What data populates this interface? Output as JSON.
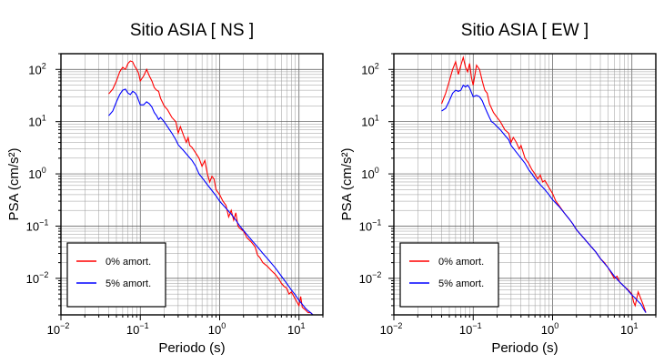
{
  "chart_data": [
    {
      "type": "line",
      "title": "Sitio ASIA [ NS ]",
      "xlabel": "Periodo (s)",
      "ylabel": "PSA (cm/s²)",
      "xscale": "log",
      "yscale": "log",
      "xlim": [
        0.01,
        20
      ],
      "ylim": [
        0.002,
        200
      ],
      "xticks": [
        {
          "base": "10",
          "exp": "−2"
        },
        {
          "base": "10",
          "exp": "−1"
        },
        {
          "base": "10",
          "exp": "0"
        },
        {
          "base": "10",
          "exp": "1"
        }
      ],
      "yticks": [
        {
          "base": "10",
          "exp": "−2"
        },
        {
          "base": "10",
          "exp": "−1"
        },
        {
          "base": "10",
          "exp": "0"
        },
        {
          "base": "10",
          "exp": "1"
        },
        {
          "base": "10",
          "exp": "2"
        }
      ],
      "grid": true,
      "legend_position": "bottom-left",
      "series": [
        {
          "name": "0% amort.",
          "color": "#ff0000",
          "points": [
            [
              0.04,
              34
            ],
            [
              0.045,
              42
            ],
            [
              0.05,
              60
            ],
            [
              0.055,
              90
            ],
            [
              0.06,
              110
            ],
            [
              0.065,
              100
            ],
            [
              0.07,
              130
            ],
            [
              0.075,
              145
            ],
            [
              0.08,
              140
            ],
            [
              0.085,
              115
            ],
            [
              0.09,
              100
            ],
            [
              0.095,
              85
            ],
            [
              0.1,
              60
            ],
            [
              0.11,
              75
            ],
            [
              0.12,
              100
            ],
            [
              0.13,
              75
            ],
            [
              0.14,
              60
            ],
            [
              0.15,
              45
            ],
            [
              0.16,
              40
            ],
            [
              0.17,
              38
            ],
            [
              0.18,
              28
            ],
            [
              0.2,
              20
            ],
            [
              0.22,
              17
            ],
            [
              0.25,
              12
            ],
            [
              0.28,
              10
            ],
            [
              0.3,
              6
            ],
            [
              0.32,
              8
            ],
            [
              0.35,
              5.5
            ],
            [
              0.38,
              4
            ],
            [
              0.4,
              5
            ],
            [
              0.42,
              3.5
            ],
            [
              0.45,
              3.2
            ],
            [
              0.5,
              2.5
            ],
            [
              0.55,
              2
            ],
            [
              0.6,
              1.4
            ],
            [
              0.65,
              1.8
            ],
            [
              0.7,
              1
            ],
            [
              0.75,
              0.7
            ],
            [
              0.8,
              0.9
            ],
            [
              0.85,
              0.8
            ],
            [
              0.9,
              0.5
            ],
            [
              1.0,
              0.4
            ],
            [
              1.1,
              0.3
            ],
            [
              1.2,
              0.25
            ],
            [
              1.3,
              0.15
            ],
            [
              1.4,
              0.2
            ],
            [
              1.5,
              0.13
            ],
            [
              1.6,
              0.18
            ],
            [
              1.7,
              0.1
            ],
            [
              1.8,
              0.09
            ],
            [
              2.0,
              0.08
            ],
            [
              2.2,
              0.06
            ],
            [
              2.5,
              0.05
            ],
            [
              2.8,
              0.04
            ],
            [
              3.0,
              0.028
            ],
            [
              3.2,
              0.025
            ],
            [
              3.5,
              0.02
            ],
            [
              4.0,
              0.017
            ],
            [
              4.5,
              0.014
            ],
            [
              5,
              0.012
            ],
            [
              5.5,
              0.01
            ],
            [
              6,
              0.008
            ],
            [
              6.5,
              0.007
            ],
            [
              7,
              0.0065
            ],
            [
              7.5,
              0.005
            ],
            [
              8,
              0.0055
            ],
            [
              9,
              0.004
            ],
            [
              10,
              0.003
            ],
            [
              10.5,
              0.0045
            ],
            [
              11,
              0.0028
            ],
            [
              12,
              0.0025
            ],
            [
              13,
              0.0022
            ],
            [
              14,
              0.0022
            ],
            [
              15,
              0.002
            ]
          ]
        },
        {
          "name": "5% amort.",
          "color": "#0000ff",
          "points": [
            [
              0.04,
              13
            ],
            [
              0.045,
              16
            ],
            [
              0.05,
              24
            ],
            [
              0.055,
              33
            ],
            [
              0.06,
              40
            ],
            [
              0.065,
              42
            ],
            [
              0.07,
              35
            ],
            [
              0.075,
              33
            ],
            [
              0.08,
              38
            ],
            [
              0.085,
              36
            ],
            [
              0.09,
              32
            ],
            [
              0.1,
              21
            ],
            [
              0.11,
              21
            ],
            [
              0.12,
              24
            ],
            [
              0.13,
              22
            ],
            [
              0.14,
              19
            ],
            [
              0.15,
              15
            ],
            [
              0.16,
              13
            ],
            [
              0.17,
              11
            ],
            [
              0.18,
              12
            ],
            [
              0.2,
              10
            ],
            [
              0.22,
              8
            ],
            [
              0.25,
              6
            ],
            [
              0.28,
              4.5
            ],
            [
              0.3,
              3.6
            ],
            [
              0.35,
              2.8
            ],
            [
              0.4,
              2.2
            ],
            [
              0.45,
              1.8
            ],
            [
              0.5,
              1.4
            ],
            [
              0.55,
              1.0
            ],
            [
              0.6,
              0.85
            ],
            [
              0.7,
              0.62
            ],
            [
              0.8,
              0.48
            ],
            [
              0.9,
              0.38
            ],
            [
              1.0,
              0.3
            ],
            [
              1.2,
              0.22
            ],
            [
              1.4,
              0.17
            ],
            [
              1.6,
              0.13
            ],
            [
              1.8,
              0.1
            ],
            [
              2.0,
              0.082
            ],
            [
              2.5,
              0.055
            ],
            [
              3.0,
              0.04
            ],
            [
              3.5,
              0.03
            ],
            [
              4.0,
              0.024
            ],
            [
              5,
              0.016
            ],
            [
              6,
              0.011
            ],
            [
              7,
              0.008
            ],
            [
              8,
              0.006
            ],
            [
              9,
              0.0048
            ],
            [
              10,
              0.0038
            ],
            [
              11,
              0.0032
            ],
            [
              12,
              0.0027
            ],
            [
              13,
              0.0024
            ],
            [
              14,
              0.0022
            ],
            [
              15,
              0.002
            ]
          ]
        }
      ]
    },
    {
      "type": "line",
      "title": "Sitio ASIA [ EW ]",
      "xlabel": "Periodo (s)",
      "ylabel": "PSA (cm/s²)",
      "xscale": "log",
      "yscale": "log",
      "xlim": [
        0.01,
        20
      ],
      "ylim": [
        0.002,
        200
      ],
      "xticks": [
        {
          "base": "10",
          "exp": "−2"
        },
        {
          "base": "10",
          "exp": "−1"
        },
        {
          "base": "10",
          "exp": "0"
        },
        {
          "base": "10",
          "exp": "1"
        }
      ],
      "yticks": [
        {
          "base": "10",
          "exp": "−2"
        },
        {
          "base": "10",
          "exp": "−1"
        },
        {
          "base": "10",
          "exp": "0"
        },
        {
          "base": "10",
          "exp": "1"
        },
        {
          "base": "10",
          "exp": "2"
        }
      ],
      "grid": true,
      "legend_position": "bottom-left",
      "series": [
        {
          "name": "0% amort.",
          "color": "#ff0000",
          "points": [
            [
              0.04,
              22
            ],
            [
              0.045,
              35
            ],
            [
              0.05,
              60
            ],
            [
              0.055,
              100
            ],
            [
              0.06,
              140
            ],
            [
              0.065,
              80
            ],
            [
              0.07,
              120
            ],
            [
              0.075,
              170
            ],
            [
              0.08,
              110
            ],
            [
              0.085,
              90
            ],
            [
              0.09,
              130
            ],
            [
              0.095,
              70
            ],
            [
              0.1,
              50
            ],
            [
              0.11,
              120
            ],
            [
              0.12,
              100
            ],
            [
              0.13,
              60
            ],
            [
              0.14,
              40
            ],
            [
              0.15,
              35
            ],
            [
              0.16,
              22
            ],
            [
              0.17,
              18
            ],
            [
              0.18,
              15
            ],
            [
              0.2,
              12
            ],
            [
              0.22,
              10
            ],
            [
              0.25,
              7
            ],
            [
              0.28,
              6
            ],
            [
              0.3,
              4
            ],
            [
              0.32,
              5
            ],
            [
              0.35,
              4
            ],
            [
              0.38,
              3
            ],
            [
              0.4,
              3.5
            ],
            [
              0.45,
              2
            ],
            [
              0.5,
              1.6
            ],
            [
              0.55,
              1.2
            ],
            [
              0.6,
              1.0
            ],
            [
              0.65,
              0.8
            ],
            [
              0.7,
              0.95
            ],
            [
              0.75,
              0.7
            ],
            [
              0.8,
              0.75
            ],
            [
              0.9,
              0.55
            ],
            [
              1.0,
              0.42
            ],
            [
              1.1,
              0.3
            ],
            [
              1.2,
              0.25
            ],
            [
              1.4,
              0.18
            ],
            [
              1.6,
              0.14
            ],
            [
              1.8,
              0.11
            ],
            [
              2.0,
              0.085
            ],
            [
              2.5,
              0.058
            ],
            [
              3.0,
              0.042
            ],
            [
              3.5,
              0.032
            ],
            [
              4.0,
              0.024
            ],
            [
              4.5,
              0.02
            ],
            [
              5,
              0.016
            ],
            [
              6,
              0.01
            ],
            [
              6.5,
              0.011
            ],
            [
              7,
              0.0085
            ],
            [
              8,
              0.007
            ],
            [
              9,
              0.006
            ],
            [
              10,
              0.005
            ],
            [
              10.5,
              0.0035
            ],
            [
              11,
              0.003
            ],
            [
              12,
              0.0055
            ],
            [
              13,
              0.004
            ],
            [
              14,
              0.003
            ],
            [
              15,
              0.0022
            ]
          ]
        },
        {
          "name": "5% amort.",
          "color": "#0000ff",
          "points": [
            [
              0.04,
              16
            ],
            [
              0.045,
              18
            ],
            [
              0.05,
              25
            ],
            [
              0.055,
              35
            ],
            [
              0.06,
              40
            ],
            [
              0.065,
              38
            ],
            [
              0.07,
              40
            ],
            [
              0.075,
              50
            ],
            [
              0.08,
              46
            ],
            [
              0.085,
              50
            ],
            [
              0.09,
              44
            ],
            [
              0.1,
              30
            ],
            [
              0.11,
              32
            ],
            [
              0.12,
              30
            ],
            [
              0.13,
              25
            ],
            [
              0.14,
              19
            ],
            [
              0.15,
              15
            ],
            [
              0.16,
              12
            ],
            [
              0.17,
              10
            ],
            [
              0.18,
              9.5
            ],
            [
              0.2,
              8
            ],
            [
              0.22,
              7
            ],
            [
              0.25,
              5.5
            ],
            [
              0.28,
              4.5
            ],
            [
              0.3,
              3.5
            ],
            [
              0.35,
              2.6
            ],
            [
              0.4,
              2.0
            ],
            [
              0.45,
              1.6
            ],
            [
              0.5,
              1.2
            ],
            [
              0.55,
              1.0
            ],
            [
              0.6,
              0.82
            ],
            [
              0.7,
              0.62
            ],
            [
              0.8,
              0.5
            ],
            [
              0.9,
              0.4
            ],
            [
              1.0,
              0.32
            ],
            [
              1.2,
              0.24
            ],
            [
              1.4,
              0.18
            ],
            [
              1.6,
              0.14
            ],
            [
              1.8,
              0.11
            ],
            [
              2.0,
              0.085
            ],
            [
              2.5,
              0.058
            ],
            [
              3.0,
              0.042
            ],
            [
              3.5,
              0.032
            ],
            [
              4.0,
              0.024
            ],
            [
              5,
              0.016
            ],
            [
              6,
              0.011
            ],
            [
              7,
              0.0085
            ],
            [
              8,
              0.007
            ],
            [
              9,
              0.0058
            ],
            [
              10,
              0.0048
            ],
            [
              11,
              0.0042
            ],
            [
              12,
              0.0036
            ],
            [
              13,
              0.0032
            ],
            [
              14,
              0.0026
            ],
            [
              15,
              0.0022
            ]
          ]
        }
      ]
    }
  ]
}
